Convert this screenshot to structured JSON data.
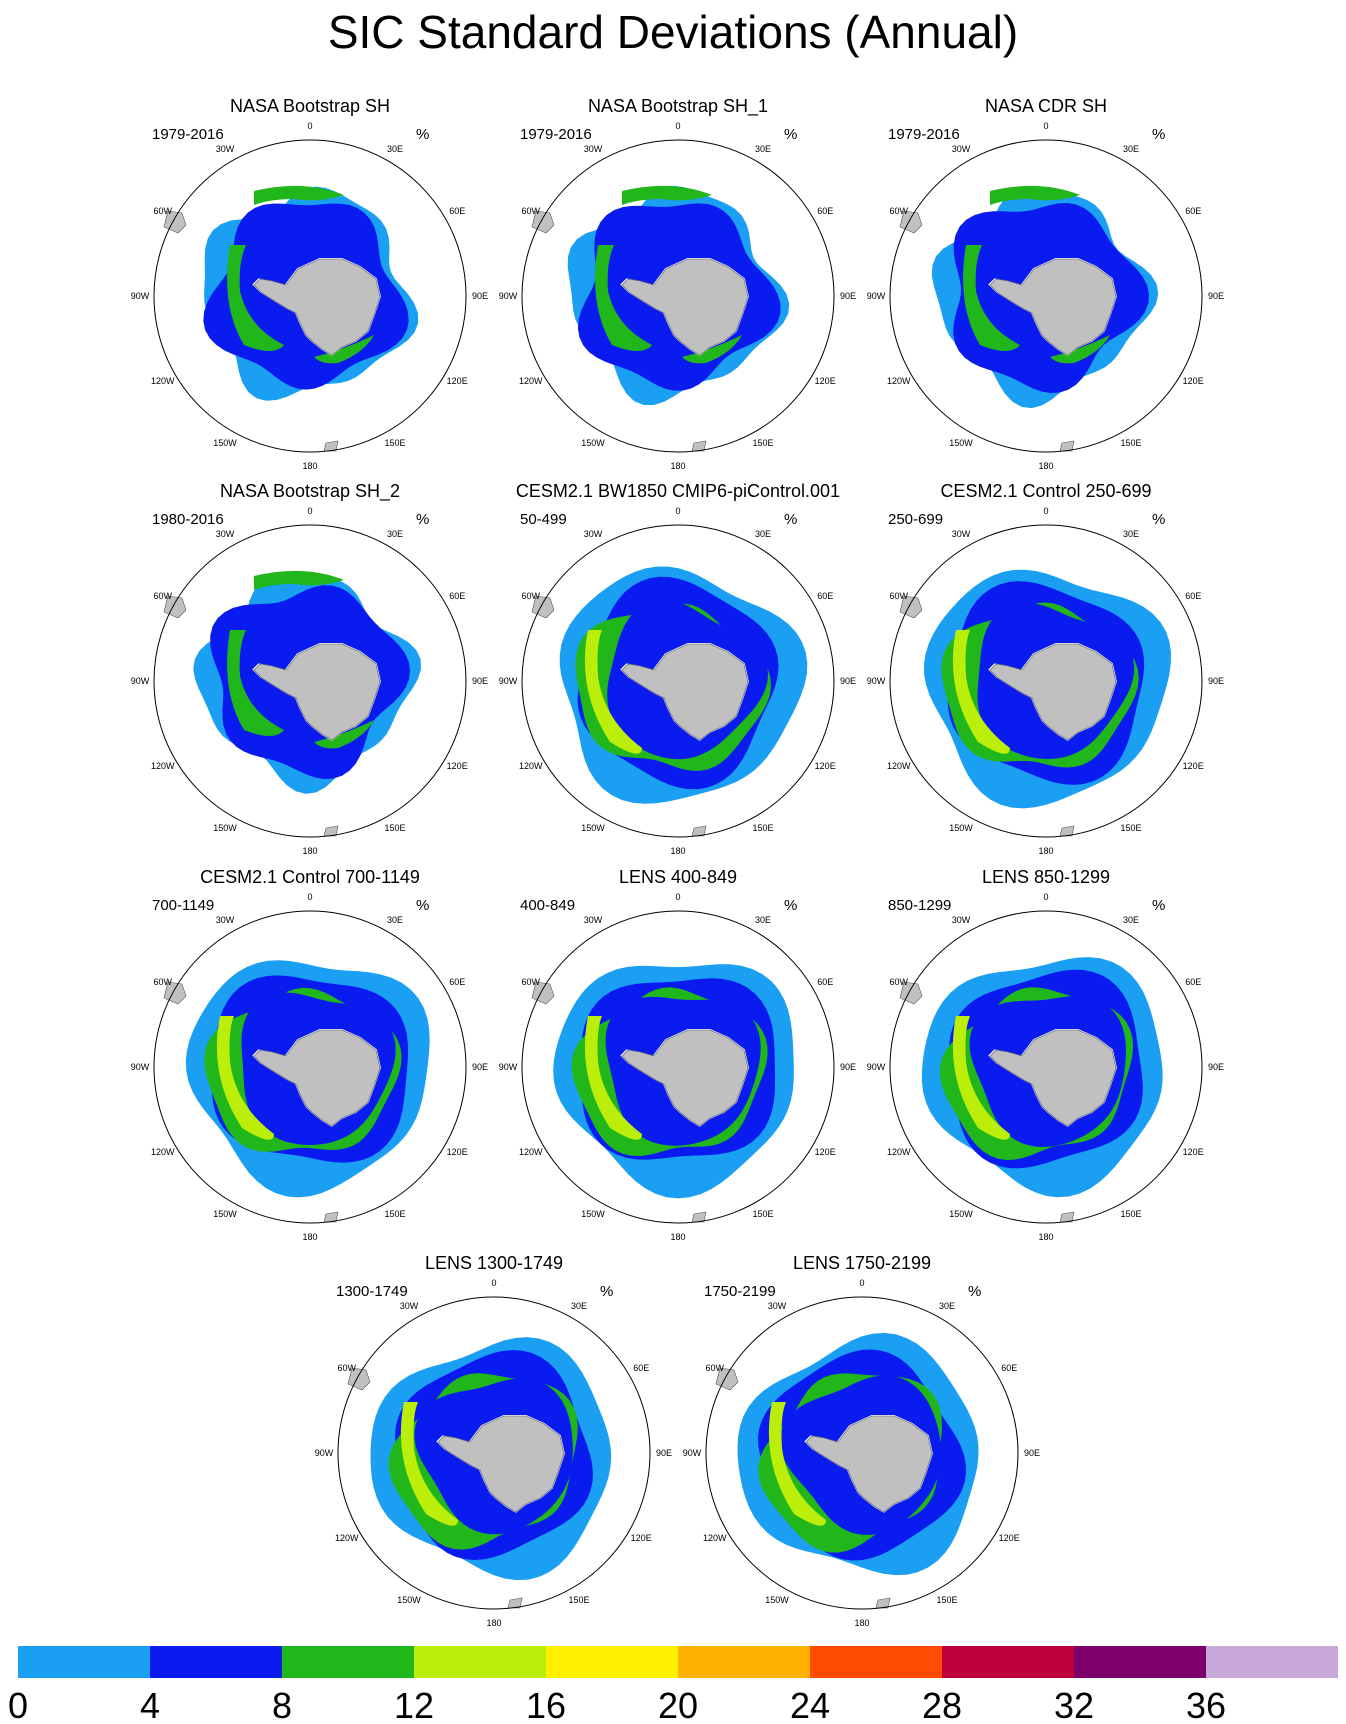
{
  "title": "SIC Standard Deviations (Annual)",
  "panels": [
    {
      "title": "NASA Bootstrap SH",
      "left": "1979-2016",
      "right": "%",
      "style": "obs"
    },
    {
      "title": "NASA Bootstrap SH_1",
      "left": "1979-2016",
      "right": "%",
      "style": "obs"
    },
    {
      "title": "NASA CDR SH",
      "left": "1979-2016",
      "right": "%",
      "style": "obs"
    },
    {
      "title": "NASA Bootstrap SH_2",
      "left": "1980-2016",
      "right": "%",
      "style": "obs"
    },
    {
      "title": "CESM2.1 BW1850 CMIP6-piControl.001",
      "left": "50-499",
      "right": "%",
      "style": "model"
    },
    {
      "title": "CESM2.1 Control 250-699",
      "left": "250-699",
      "right": "%",
      "style": "model"
    },
    {
      "title": "CESM2.1 Control 700-1149",
      "left": "700-1149",
      "right": "%",
      "style": "model"
    },
    {
      "title": "LENS 400-849",
      "left": "400-849",
      "right": "%",
      "style": "model"
    },
    {
      "title": "LENS 850-1299",
      "left": "850-1299",
      "right": "%",
      "style": "model"
    },
    {
      "title": "LENS 1300-1749",
      "left": "1300-1749",
      "right": "%",
      "style": "model"
    },
    {
      "title": "LENS 1750-2199",
      "left": "1750-2199",
      "right": "%",
      "style": "model"
    }
  ],
  "lon_labels": [
    "0",
    "30E",
    "60E",
    "90E",
    "120E",
    "150E",
    "180",
    "150W",
    "120W",
    "90W",
    "60W",
    "30W"
  ],
  "colorbar": {
    "colors": [
      "#1a9ff3",
      "#0a1bf0",
      "#21b71a",
      "#bbee0a",
      "#fff000",
      "#ffb300",
      "#ff4b00",
      "#c0003a",
      "#7d006a",
      "#c8a8d8"
    ],
    "labels": [
      "0",
      "4",
      "8",
      "12",
      "16",
      "20",
      "24",
      "28",
      "32",
      "36"
    ]
  },
  "map_colors": {
    "land": "#c0c0c0",
    "shelf": "#ffffff"
  }
}
